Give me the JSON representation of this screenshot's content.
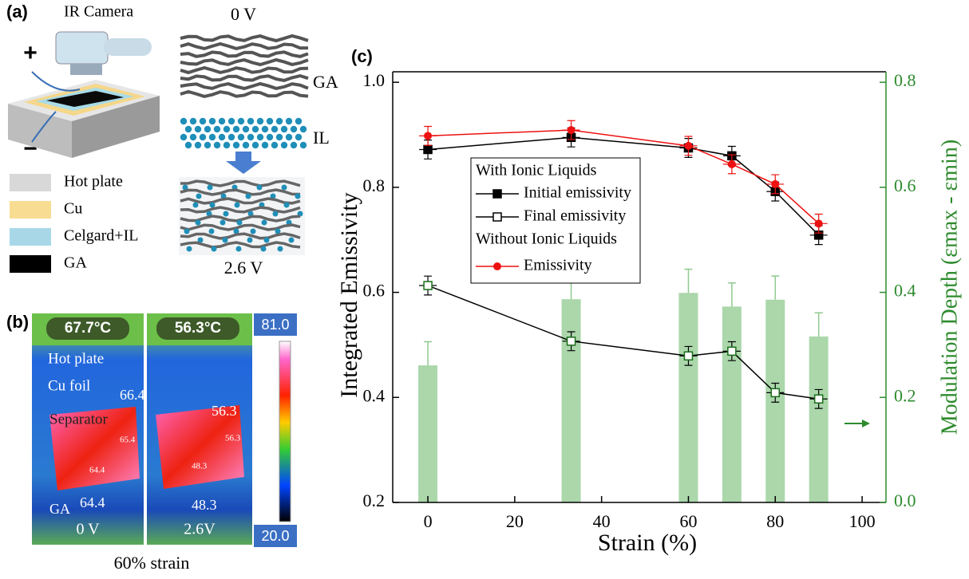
{
  "panel_a": {
    "label": "(a)",
    "camera": "IR Camera",
    "plus": "+",
    "minus": "−",
    "top_voltage": "0 V",
    "ga": "GA",
    "il": "IL",
    "bottom_voltage": "2.6 V",
    "legend": [
      "Hot plate",
      "Cu",
      "Celgard+IL",
      "GA"
    ]
  },
  "panel_b": {
    "label": "(b)",
    "temps": [
      "67.7°C",
      "56.3°C"
    ],
    "scale_max": "81.0",
    "scale_min": "20.0",
    "hot_plate": "Hot plate",
    "cu_foil": "Cu foil",
    "separator": "Separator",
    "left_values": [
      "66.4",
      "65.4",
      "64.4",
      "64.4"
    ],
    "right_values": [
      "56.3",
      "56.3",
      "48.3",
      "48.3"
    ],
    "ga": "GA",
    "voltages": [
      "0 V",
      "2.6V"
    ],
    "caption": "60% strain"
  },
  "chart_data": {
    "type": "line",
    "panel_label": "(c)",
    "xlabel": "Strain (%)",
    "ylabel": "Integrated Emissivity",
    "y2label": "Modulation Depth (εmax - εmin)",
    "x": [
      0,
      33,
      60,
      70,
      80,
      90
    ],
    "xlim": [
      -8.1,
      105.5
    ],
    "xticks": [
      0,
      20,
      40,
      60,
      80,
      100
    ],
    "ylim": [
      0.2,
      1.02
    ],
    "yticks": [
      0.2,
      0.4,
      0.6,
      0.8,
      {
        "value": 1,
        "label": "1.0"
      }
    ],
    "y2lim": [
      0,
      0.82
    ],
    "y2ticks": [
      {
        "value": 0,
        "label": "0.0"
      },
      0.2,
      0.4,
      0.6,
      0.8
    ],
    "y2color": "#2e8b2e",
    "legend_headings": [
      "With Ionic Liquids",
      "Without Ionic Liquids"
    ],
    "series": [
      {
        "type": "bar",
        "axis": "y2",
        "color": "#8fca8f",
        "values": [
          0.261,
          0.387,
          0.399,
          0.373,
          0.386,
          0.316
        ],
        "errors": [
          0.045,
          0.045,
          0.045,
          0.045,
          0.045,
          0.045
        ]
      },
      {
        "name": "Initial emissivity",
        "marker": "filled-square",
        "color": "#000000",
        "values": [
          0.872,
          0.895,
          0.875,
          0.86,
          0.792,
          0.709
        ],
        "errors": [
          0.018,
          0.018,
          0.018,
          0.018,
          0.018,
          0.018
        ]
      },
      {
        "name": "Final emissivity",
        "marker": "open-square",
        "color": "#000000",
        "values": [
          0.613,
          0.507,
          0.479,
          0.488,
          0.409,
          0.397
        ],
        "errors": [
          0.018,
          0.018,
          0.018,
          0.018,
          0.018,
          0.018
        ]
      },
      {
        "name": "Emissivity",
        "marker": "circle",
        "color": "#ee1111",
        "values": [
          0.898,
          0.909,
          0.879,
          0.844,
          0.806,
          0.731
        ],
        "errors": [
          0.018,
          0.018,
          0.018,
          0.018,
          0.018,
          0.018
        ]
      }
    ]
  }
}
